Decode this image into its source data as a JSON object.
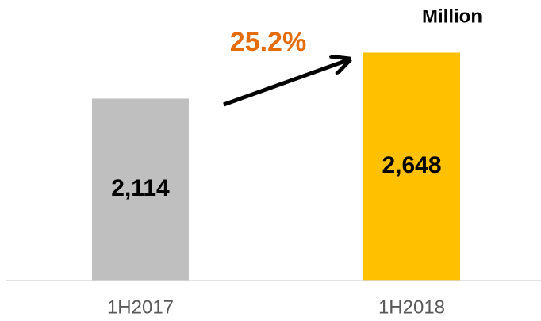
{
  "chart_data": {
    "type": "bar",
    "categories": [
      "1H2017",
      "1H2018"
    ],
    "values": [
      2114,
      2648
    ],
    "value_labels": [
      "2,114",
      "2,648"
    ],
    "colors": [
      "#bfbfbf",
      "#ffc000"
    ],
    "ylim": [
      0,
      3260
    ],
    "annotation": "25.2%",
    "unit_label": "Million"
  }
}
